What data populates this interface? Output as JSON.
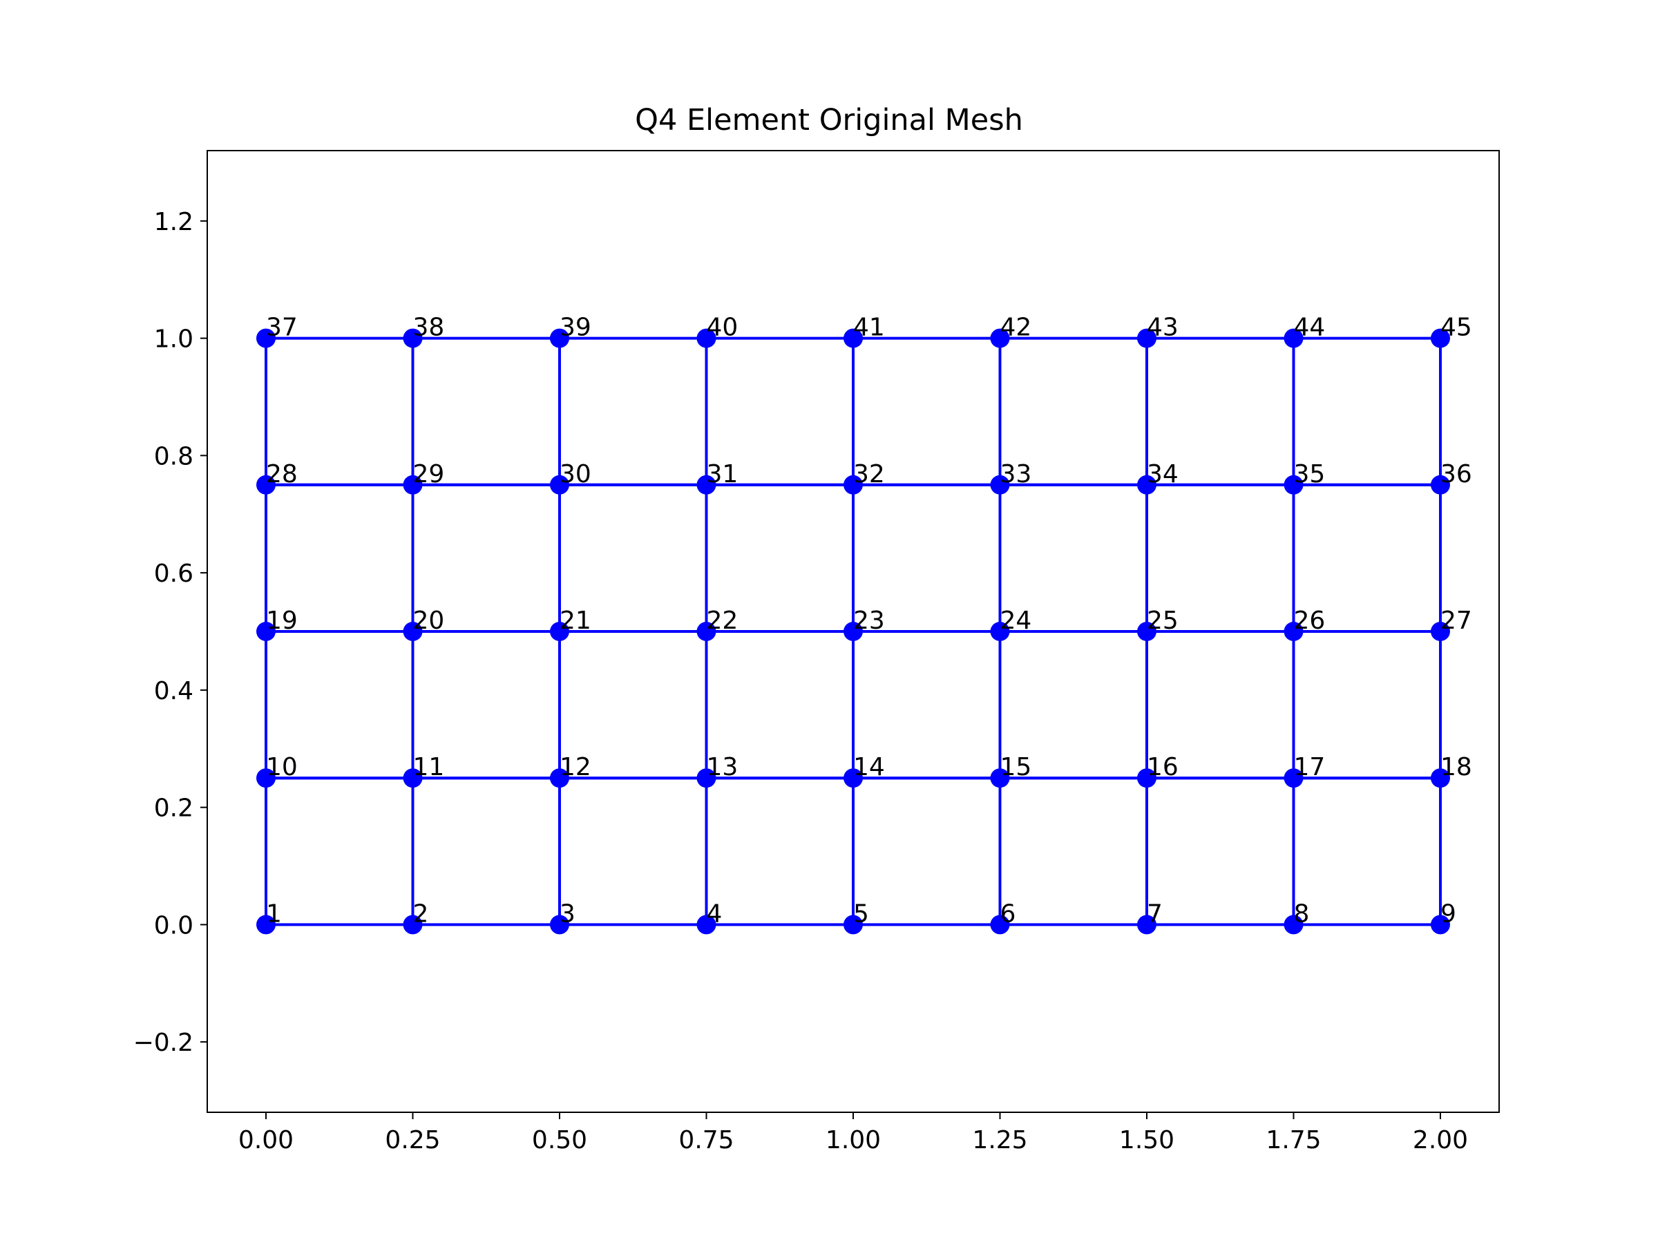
{
  "chart_data": {
    "type": "scatter",
    "title": "Q4 Element Original Mesh",
    "xlabel": "",
    "ylabel": "",
    "xlim": [
      -0.1,
      2.1
    ],
    "ylim": [
      -0.32,
      1.32
    ],
    "x_ticks": [
      0.0,
      0.25,
      0.5,
      0.75,
      1.0,
      1.25,
      1.5,
      1.75,
      2.0
    ],
    "x_tick_labels": [
      "0.00",
      "0.25",
      "0.50",
      "0.75",
      "1.00",
      "1.25",
      "1.50",
      "1.75",
      "2.00"
    ],
    "y_ticks": [
      -0.2,
      0.0,
      0.2,
      0.4,
      0.6,
      0.8,
      1.0,
      1.2
    ],
    "y_tick_labels": [
      "−0.2",
      "0.0",
      "0.2",
      "0.4",
      "0.6",
      "0.8",
      "1.0",
      "1.2"
    ],
    "grid": false,
    "legend": "none",
    "color": "#0000ff",
    "nodes": [
      {
        "id": "1",
        "x": 0.0,
        "y": 0.0
      },
      {
        "id": "2",
        "x": 0.25,
        "y": 0.0
      },
      {
        "id": "3",
        "x": 0.5,
        "y": 0.0
      },
      {
        "id": "4",
        "x": 0.75,
        "y": 0.0
      },
      {
        "id": "5",
        "x": 1.0,
        "y": 0.0
      },
      {
        "id": "6",
        "x": 1.25,
        "y": 0.0
      },
      {
        "id": "7",
        "x": 1.5,
        "y": 0.0
      },
      {
        "id": "8",
        "x": 1.75,
        "y": 0.0
      },
      {
        "id": "9",
        "x": 2.0,
        "y": 0.0
      },
      {
        "id": "10",
        "x": 0.0,
        "y": 0.25
      },
      {
        "id": "11",
        "x": 0.25,
        "y": 0.25
      },
      {
        "id": "12",
        "x": 0.5,
        "y": 0.25
      },
      {
        "id": "13",
        "x": 0.75,
        "y": 0.25
      },
      {
        "id": "14",
        "x": 1.0,
        "y": 0.25
      },
      {
        "id": "15",
        "x": 1.25,
        "y": 0.25
      },
      {
        "id": "16",
        "x": 1.5,
        "y": 0.25
      },
      {
        "id": "17",
        "x": 1.75,
        "y": 0.25
      },
      {
        "id": "18",
        "x": 2.0,
        "y": 0.25
      },
      {
        "id": "19",
        "x": 0.0,
        "y": 0.5
      },
      {
        "id": "20",
        "x": 0.25,
        "y": 0.5
      },
      {
        "id": "21",
        "x": 0.5,
        "y": 0.5
      },
      {
        "id": "22",
        "x": 0.75,
        "y": 0.5
      },
      {
        "id": "23",
        "x": 1.0,
        "y": 0.5
      },
      {
        "id": "24",
        "x": 1.25,
        "y": 0.5
      },
      {
        "id": "25",
        "x": 1.5,
        "y": 0.5
      },
      {
        "id": "26",
        "x": 1.75,
        "y": 0.5
      },
      {
        "id": "27",
        "x": 2.0,
        "y": 0.5
      },
      {
        "id": "28",
        "x": 0.0,
        "y": 0.75
      },
      {
        "id": "29",
        "x": 0.25,
        "y": 0.75
      },
      {
        "id": "30",
        "x": 0.5,
        "y": 0.75
      },
      {
        "id": "31",
        "x": 0.75,
        "y": 0.75
      },
      {
        "id": "32",
        "x": 1.0,
        "y": 0.75
      },
      {
        "id": "33",
        "x": 1.25,
        "y": 0.75
      },
      {
        "id": "34",
        "x": 1.5,
        "y": 0.75
      },
      {
        "id": "35",
        "x": 1.75,
        "y": 0.75
      },
      {
        "id": "36",
        "x": 2.0,
        "y": 0.75
      },
      {
        "id": "37",
        "x": 0.0,
        "y": 1.0
      },
      {
        "id": "38",
        "x": 0.25,
        "y": 1.0
      },
      {
        "id": "39",
        "x": 0.5,
        "y": 1.0
      },
      {
        "id": "40",
        "x": 0.75,
        "y": 1.0
      },
      {
        "id": "41",
        "x": 1.0,
        "y": 1.0
      },
      {
        "id": "42",
        "x": 1.25,
        "y": 1.0
      },
      {
        "id": "43",
        "x": 1.5,
        "y": 1.0
      },
      {
        "id": "44",
        "x": 1.75,
        "y": 1.0
      },
      {
        "id": "45",
        "x": 2.0,
        "y": 1.0
      }
    ],
    "elements": [
      [
        "1",
        "2",
        "11",
        "10"
      ],
      [
        "2",
        "3",
        "12",
        "11"
      ],
      [
        "3",
        "4",
        "13",
        "12"
      ],
      [
        "4",
        "5",
        "14",
        "13"
      ],
      [
        "5",
        "6",
        "15",
        "14"
      ],
      [
        "6",
        "7",
        "16",
        "15"
      ],
      [
        "7",
        "8",
        "17",
        "16"
      ],
      [
        "8",
        "9",
        "18",
        "17"
      ],
      [
        "10",
        "11",
        "20",
        "19"
      ],
      [
        "11",
        "12",
        "21",
        "20"
      ],
      [
        "12",
        "13",
        "22",
        "21"
      ],
      [
        "13",
        "14",
        "23",
        "22"
      ],
      [
        "14",
        "15",
        "24",
        "23"
      ],
      [
        "15",
        "16",
        "25",
        "24"
      ],
      [
        "16",
        "17",
        "26",
        "25"
      ],
      [
        "17",
        "18",
        "27",
        "26"
      ],
      [
        "19",
        "20",
        "29",
        "28"
      ],
      [
        "20",
        "21",
        "30",
        "29"
      ],
      [
        "21",
        "22",
        "31",
        "30"
      ],
      [
        "22",
        "23",
        "32",
        "31"
      ],
      [
        "23",
        "24",
        "33",
        "32"
      ],
      [
        "24",
        "25",
        "34",
        "33"
      ],
      [
        "25",
        "26",
        "35",
        "34"
      ],
      [
        "26",
        "27",
        "36",
        "35"
      ],
      [
        "28",
        "29",
        "38",
        "37"
      ],
      [
        "29",
        "30",
        "39",
        "38"
      ],
      [
        "30",
        "31",
        "40",
        "39"
      ],
      [
        "31",
        "32",
        "41",
        "40"
      ],
      [
        "32",
        "33",
        "42",
        "41"
      ],
      [
        "33",
        "34",
        "43",
        "42"
      ],
      [
        "34",
        "35",
        "44",
        "43"
      ],
      [
        "35",
        "36",
        "45",
        "44"
      ]
    ]
  }
}
